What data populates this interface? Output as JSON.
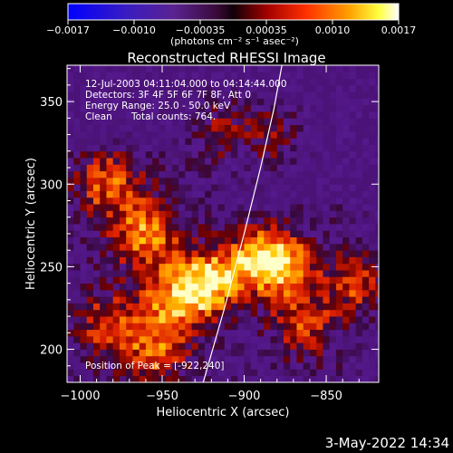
{
  "chart_data": {
    "type": "heatmap",
    "title": "Reconstructed RHESSI Image",
    "xlabel": "Heliocentric X (arcsec)",
    "ylabel": "Heliocentric Y (arcsec)",
    "xlim": [
      -1008,
      -818
    ],
    "ylim": [
      180,
      372
    ],
    "x_ticks": [
      -1000,
      -950,
      -900,
      -850
    ],
    "y_ticks": [
      200,
      250,
      300,
      350
    ],
    "x_tick_labels": [
      "−1000",
      "−950",
      "−900",
      "−850"
    ],
    "y_tick_labels": [
      "200",
      "250",
      "300",
      "350"
    ],
    "colorbar": {
      "range": [
        -0.0017,
        0.0017
      ],
      "tick_labels": [
        "−0.0017",
        "−0.0010",
        "−0.00035",
        "0.00035",
        "0.0010",
        "0.0017"
      ],
      "units": "(photons cm⁻² s⁻¹ asec⁻²)",
      "colormap": "blue-purple-red-yellow-white"
    },
    "annotations": {
      "time_range": "12-Jul-2003 04:11:04.000 to 04:14:44.000",
      "detectors": "Detectors: 3F 4F 5F 6F 7F 8F, Att 0",
      "energy": "Energy Range: 25.0 - 50.0 keV",
      "method": "Clean",
      "counts": "Total counts: 764.",
      "peak": "Position of Peak = [-922,240]"
    },
    "peak": {
      "x": -922,
      "y": 240
    },
    "limb_curve": {
      "x": [
        -925,
        -912,
        -900,
        -890,
        -882,
        -877
      ],
      "y": [
        180,
        225,
        270,
        310,
        345,
        372
      ]
    },
    "hotspots": [
      {
        "x": -922,
        "y": 240,
        "intensity": 1.0
      },
      {
        "x": -892,
        "y": 255,
        "intensity": 0.85
      },
      {
        "x": -875,
        "y": 250,
        "intensity": 0.7
      },
      {
        "x": -985,
        "y": 300,
        "intensity": 0.6
      },
      {
        "x": -960,
        "y": 270,
        "intensity": 0.7
      },
      {
        "x": -945,
        "y": 230,
        "intensity": 0.6
      },
      {
        "x": -955,
        "y": 200,
        "intensity": 0.55
      },
      {
        "x": -865,
        "y": 215,
        "intensity": 0.55
      },
      {
        "x": -830,
        "y": 240,
        "intensity": 0.6
      },
      {
        "x": -915,
        "y": 335,
        "intensity": 0.45
      },
      {
        "x": -882,
        "y": 330,
        "intensity": 0.5
      },
      {
        "x": -985,
        "y": 215,
        "intensity": 0.5
      }
    ]
  },
  "footer": {
    "timestamp": "3-May-2022 14:34"
  }
}
